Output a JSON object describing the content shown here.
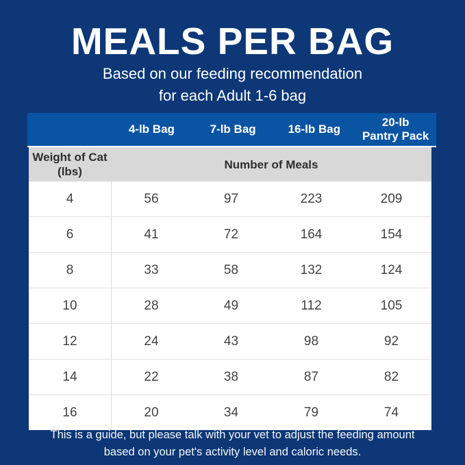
{
  "colors": {
    "background_navy": "#0D3776",
    "header_blue": "#0A54A4",
    "subheader_gray": "#D8D8D8",
    "body_text": "#424242"
  },
  "title": "MEALS PER BAG",
  "subtitle_line1": "Based on our feeding recommendation",
  "subtitle_line2": "for each Adult 1-6 bag",
  "table": {
    "column_headers": [
      "",
      "4-lb Bag",
      "7-lb Bag",
      "16-lb Bag",
      "20-lb\nPantry Pack"
    ],
    "row_header_label": "Weight of Cat\n(lbs)",
    "span_header_label": "Number of Meals",
    "rows": [
      {
        "weight": "4",
        "meals": [
          "56",
          "97",
          "223",
          "209"
        ]
      },
      {
        "weight": "6",
        "meals": [
          "41",
          "72",
          "164",
          "154"
        ]
      },
      {
        "weight": "8",
        "meals": [
          "33",
          "58",
          "132",
          "124"
        ]
      },
      {
        "weight": "10",
        "meals": [
          "28",
          "49",
          "112",
          "105"
        ]
      },
      {
        "weight": "12",
        "meals": [
          "24",
          "43",
          "98",
          "92"
        ]
      },
      {
        "weight": "14",
        "meals": [
          "22",
          "38",
          "87",
          "82"
        ]
      },
      {
        "weight": "16",
        "meals": [
          "20",
          "34",
          "79",
          "74"
        ]
      }
    ]
  },
  "footer_line1": "This is a guide, but please talk with your vet to adjust the feeding amount",
  "footer_line2": "based on your pet's activity level and caloric needs.",
  "chart_data": {
    "type": "table",
    "title": "MEALS PER BAG",
    "subtitle": "Based on our feeding recommendation for each Adult 1-6 bag",
    "row_label": "Weight of Cat (lbs)",
    "value_label": "Number of Meals",
    "categories": [
      4,
      6,
      8,
      10,
      12,
      14,
      16
    ],
    "series": [
      {
        "name": "4-lb Bag",
        "values": [
          56,
          41,
          33,
          28,
          24,
          22,
          20
        ]
      },
      {
        "name": "7-lb Bag",
        "values": [
          97,
          72,
          58,
          49,
          43,
          38,
          34
        ]
      },
      {
        "name": "16-lb Bag",
        "values": [
          223,
          164,
          132,
          112,
          98,
          87,
          79
        ]
      },
      {
        "name": "20-lb Pantry Pack",
        "values": [
          209,
          154,
          124,
          105,
          92,
          82,
          74
        ]
      }
    ],
    "footnote": "This is a guide, but please talk with your vet to adjust the feeding amount based on your pet's activity level and caloric needs."
  }
}
